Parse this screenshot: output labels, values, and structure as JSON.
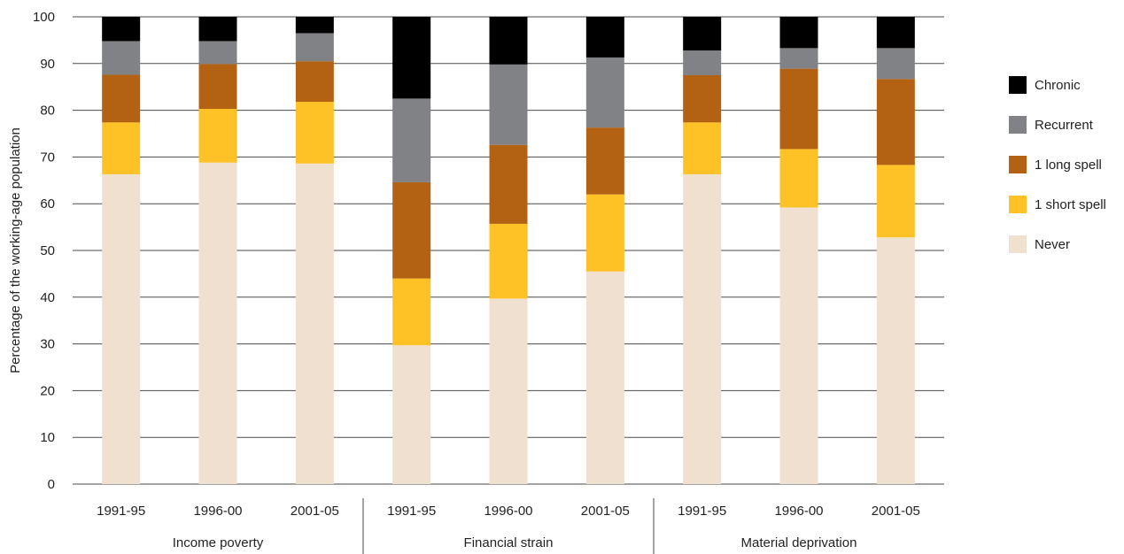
{
  "chart_data": {
    "type": "bar",
    "stacked": true,
    "ylabel": "Percentage of the working-age population",
    "ylim": [
      0,
      100
    ],
    "yticks": [
      0,
      10,
      20,
      30,
      40,
      50,
      60,
      70,
      80,
      90,
      100
    ],
    "grid": true,
    "legend_position": "right",
    "groups": [
      {
        "label": "Income poverty",
        "categories": [
          "1991-95",
          "1996-00",
          "2001-05"
        ]
      },
      {
        "label": "Financial strain",
        "categories": [
          "1991-95",
          "1996-00",
          "2001-05"
        ]
      },
      {
        "label": "Material deprivation",
        "categories": [
          "1991-95",
          "1996-00",
          "2001-05"
        ]
      }
    ],
    "categories": [
      "1991-95",
      "1996-00",
      "2001-05",
      "1991-95",
      "1996-00",
      "2001-05",
      "1991-95",
      "1996-00",
      "2001-05"
    ],
    "series": [
      {
        "name": "Never",
        "color": "#f0e0d0",
        "values": [
          66.3,
          68.8,
          68.6,
          29.7,
          39.7,
          45.5,
          66.3,
          59.2,
          52.8
        ]
      },
      {
        "name": "1 short spell",
        "color": "#fec126",
        "values": [
          11.1,
          11.5,
          13.2,
          14.3,
          16.0,
          16.5,
          11.1,
          12.5,
          15.5
        ]
      },
      {
        "name": "1 long spell",
        "color": "#b36112",
        "values": [
          10.2,
          9.6,
          8.7,
          20.6,
          16.9,
          14.3,
          10.1,
          17.2,
          18.4
        ]
      },
      {
        "name": "Recurrent",
        "color": "#808285",
        "values": [
          7.2,
          4.9,
          6.0,
          17.9,
          17.2,
          15.0,
          5.3,
          4.4,
          6.6
        ]
      },
      {
        "name": "Chronic",
        "color": "#000000",
        "values": [
          5.2,
          5.2,
          3.5,
          17.5,
          10.2,
          8.7,
          7.2,
          6.7,
          6.7
        ]
      }
    ],
    "legend_order": [
      "Chronic",
      "Recurrent",
      "1 long spell",
      "1 short spell",
      "Never"
    ]
  }
}
